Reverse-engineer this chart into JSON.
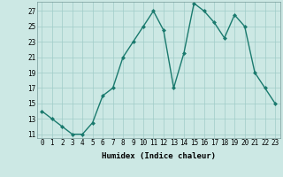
{
  "x": [
    0,
    1,
    2,
    3,
    4,
    5,
    6,
    7,
    8,
    9,
    10,
    11,
    12,
    13,
    14,
    15,
    16,
    17,
    18,
    19,
    20,
    21,
    22,
    23
  ],
  "y": [
    14,
    13,
    12,
    11,
    11,
    12.5,
    16,
    17,
    21,
    23,
    25,
    27,
    24.5,
    17,
    21.5,
    28,
    27,
    25.5,
    23.5,
    26.5,
    25,
    19,
    17,
    15
  ],
  "line_color": "#1a7a6e",
  "marker": "D",
  "marker_size": 2.0,
  "bg_color": "#cce8e4",
  "grid_color": "#a0ccc8",
  "xlabel": "Humidex (Indice chaleur)",
  "xlim": [
    -0.5,
    23.5
  ],
  "ylim": [
    10.5,
    28.2
  ],
  "yticks": [
    11,
    13,
    15,
    17,
    19,
    21,
    23,
    25,
    27
  ],
  "xticks": [
    0,
    1,
    2,
    3,
    4,
    5,
    6,
    7,
    8,
    9,
    10,
    11,
    12,
    13,
    14,
    15,
    16,
    17,
    18,
    19,
    20,
    21,
    22,
    23
  ],
  "xtick_labels": [
    "0",
    "1",
    "2",
    "3",
    "4",
    "5",
    "6",
    "7",
    "8",
    "9",
    "10",
    "11",
    "12",
    "13",
    "14",
    "15",
    "16",
    "17",
    "18",
    "19",
    "20",
    "21",
    "22",
    "23"
  ],
  "xlabel_fontsize": 6.5,
  "tick_fontsize": 5.5,
  "linewidth": 1.0
}
